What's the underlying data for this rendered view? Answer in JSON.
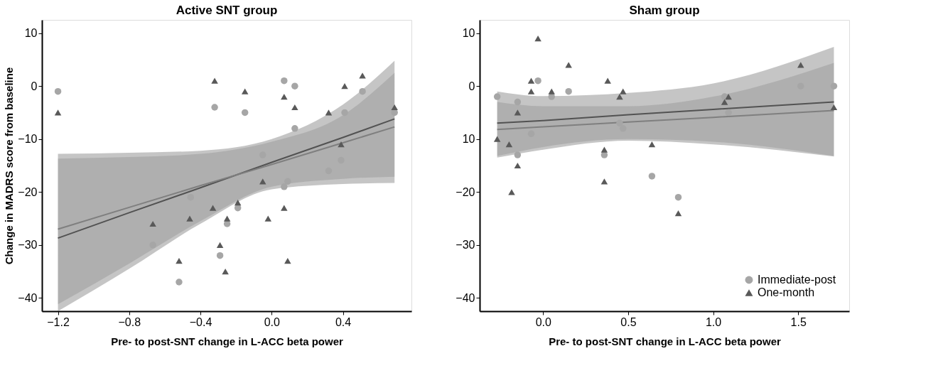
{
  "chart_data": [
    {
      "type": "scatter",
      "title": "Active SNT group",
      "xlabel": "Pre- to post-SNT change in L-ACC beta power",
      "ylabel": "Change in MADRS score from baseline",
      "xlim": [
        -1.29,
        0.785
      ],
      "ylim": [
        -42.5,
        12.5
      ],
      "xticks": [
        {
          "value": -1.2,
          "label": "−1.2"
        },
        {
          "value": -0.8,
          "label": "−0.8"
        },
        {
          "value": -0.4,
          "label": "−0.4"
        },
        {
          "value": 0,
          "label": "0.0"
        },
        {
          "value": 0.4,
          "label": "0.4"
        }
      ],
      "yticks": [
        {
          "value": -40,
          "label": "−40"
        },
        {
          "value": -30,
          "label": "−30"
        },
        {
          "value": -20,
          "label": "−20"
        },
        {
          "value": -10,
          "label": "−10"
        },
        0,
        10
      ],
      "grid": false,
      "legend": false,
      "series": [
        {
          "type": "line",
          "marker": "none",
          "color": "#404040",
          "x": [
            -1.2,
            -0.8,
            -0.4,
            0,
            0.4,
            0.69
          ],
          "values": [
            -28.7,
            -23.9,
            -19.2,
            -14.4,
            -9.7,
            -6.2
          ],
          "lower": [
            -42.5,
            -34.5,
            -26,
            -19.5,
            -18.5,
            -18.3
          ],
          "upper": [
            -12.8,
            -12.6,
            -12.2,
            -10,
            -3.5,
            4.8
          ]
        },
        {
          "type": "line",
          "marker": "none",
          "color": "#7f7f7f",
          "x": [
            -1.2,
            -0.8,
            -0.4,
            0,
            0.4,
            0.69
          ],
          "values": [
            -27,
            -22.9,
            -18.8,
            -14.8,
            -10.7,
            -7.7
          ],
          "lower": [
            -41.2,
            -33.5,
            -25.5,
            -19,
            -17.5,
            -17.1
          ],
          "upper": [
            -13.7,
            -13.4,
            -12.8,
            -10.5,
            -5.5,
            2.5
          ]
        },
        {
          "type": "scatter",
          "marker": "circle",
          "color": "#a6a6a6",
          "x": [
            -1.2,
            -0.32,
            -0.15,
            -0.455,
            -0.667,
            -0.52,
            -0.25,
            -0.29,
            -0.19,
            0.07,
            0.13,
            0.13,
            0.41,
            0.51,
            0.69,
            0.39,
            0.32,
            -0.05,
            0.09,
            0.07
          ],
          "values": [
            -1,
            -4,
            -5,
            -21,
            -30,
            -37,
            -26,
            -32,
            -23,
            1,
            0,
            -8,
            -5,
            -1,
            -5,
            -14,
            -16,
            -13,
            -18,
            -19
          ]
        },
        {
          "type": "scatter",
          "marker": "triangle",
          "color": "#595959",
          "x": [
            -1.2,
            -0.32,
            -0.15,
            -0.33,
            -0.46,
            -0.667,
            -0.52,
            -0.25,
            -0.29,
            -0.26,
            -0.19,
            0.07,
            0.13,
            0.32,
            0.41,
            0.51,
            0.69,
            0.39,
            -0.05,
            0.07,
            -0.02,
            0.09
          ],
          "values": [
            -5,
            1,
            -1,
            -23,
            -25,
            -26,
            -33,
            -25,
            -30,
            -35,
            -22,
            -2,
            -4,
            -5,
            0,
            2,
            -4,
            -11,
            -18,
            -23,
            -25,
            -33
          ]
        }
      ]
    },
    {
      "type": "scatter",
      "title": "Sham group",
      "xlabel": "Pre- to post-SNT change in L-ACC beta power",
      "xlim": [
        -0.373,
        1.8
      ],
      "ylim": [
        -42.5,
        12.5
      ],
      "xticks": [
        {
          "value": 0,
          "label": "0.0"
        },
        0.5,
        {
          "value": 1,
          "label": "1.0"
        },
        1.5
      ],
      "yticks": [
        {
          "value": -40,
          "label": "−40"
        },
        {
          "value": -30,
          "label": "−30"
        },
        {
          "value": -20,
          "label": "−20"
        },
        {
          "value": -10,
          "label": "10"
        },
        0,
        10
      ],
      "grid": false,
      "legend": "bottom right",
      "series": [
        {
          "type": "line",
          "marker": "none",
          "color": "#404040",
          "x": [
            -0.27,
            0,
            0.5,
            1.0,
            1.71
          ],
          "values": [
            -7,
            -6.5,
            -5.4,
            -4.4,
            -3
          ],
          "lower": [
            -13.5,
            -12,
            -10.3,
            -11,
            -13.3
          ],
          "upper": [
            -1,
            -1.9,
            -1.3,
            0.5,
            7.4
          ]
        },
        {
          "type": "line",
          "marker": "none",
          "color": "#7f7f7f",
          "x": [
            -0.27,
            0,
            0.5,
            1.0,
            1.71
          ],
          "values": [
            -8.2,
            -7.7,
            -6.8,
            -5.9,
            -4.6
          ],
          "lower": [
            -13.2,
            -11.5,
            -10,
            -10.5,
            -13.2
          ],
          "upper": [
            -3,
            -3.8,
            -3.8,
            -2,
            4.4
          ]
        },
        {
          "type": "scatter",
          "name": "Immediate-post",
          "marker": "circle",
          "color": "#a6a6a6",
          "x": [
            -0.27,
            -0.15,
            -0.15,
            -0.07,
            -0.03,
            0.05,
            0.15,
            0.36,
            0.45,
            0.47,
            0.64,
            0.795,
            1.067,
            1.09,
            1.515,
            1.71
          ],
          "values": [
            -2,
            -3,
            -13,
            -9,
            1,
            -2,
            -1,
            -13,
            -7,
            -8,
            -17,
            -21,
            -2,
            -5,
            0,
            0
          ]
        },
        {
          "type": "scatter",
          "name": "One-month",
          "marker": "triangle",
          "color": "#595959",
          "x": [
            -0.27,
            -0.2,
            -0.185,
            -0.15,
            -0.15,
            -0.07,
            -0.07,
            -0.03,
            0.05,
            0.15,
            0.38,
            0.36,
            0.36,
            0.45,
            0.47,
            0.64,
            0.795,
            1.067,
            1.09,
            1.515,
            1.71
          ],
          "values": [
            -10,
            -11,
            -20,
            -5,
            -15,
            1,
            -1,
            9,
            -1,
            4,
            1,
            -12,
            -18,
            -2,
            -1,
            -11,
            -24,
            -3,
            -2,
            4,
            -4
          ]
        }
      ]
    }
  ]
}
